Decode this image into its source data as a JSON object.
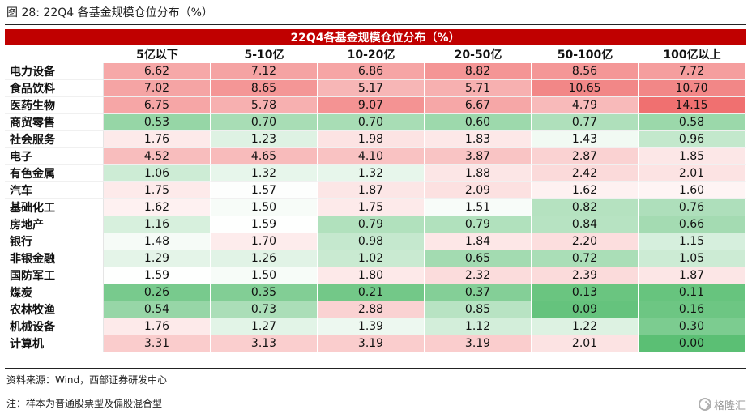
{
  "figure": {
    "title": "图 28:  22Q4 各基金规模仓位分布（%）",
    "source": "资料来源：Wind，西部证券研发中心",
    "note": "注：样本为普通股票型及偏股混合型",
    "watermark": "格隆汇"
  },
  "colors": {
    "banner": "#c00000",
    "high": "#f07070",
    "low": "#5bbf74",
    "neutral": "#ffffff"
  },
  "chart_data": {
    "type": "table",
    "title": "22Q4各基金规模仓位分布（%）",
    "columns": [
      "5亿以下",
      "5-10亿",
      "10-20亿",
      "20-50亿",
      "50-100亿",
      "100亿以上"
    ],
    "rows": [
      {
        "label": "电力设备",
        "values": [
          6.62,
          7.12,
          6.86,
          8.82,
          8.56,
          7.72
        ]
      },
      {
        "label": "食品饮料",
        "values": [
          7.02,
          8.65,
          5.17,
          5.71,
          10.65,
          10.7
        ]
      },
      {
        "label": "医药生物",
        "values": [
          6.75,
          5.78,
          9.07,
          6.67,
          4.79,
          14.15
        ]
      },
      {
        "label": "商贸零售",
        "values": [
          0.53,
          0.7,
          0.7,
          0.6,
          0.77,
          0.58
        ]
      },
      {
        "label": "社会服务",
        "values": [
          1.76,
          1.23,
          1.98,
          1.83,
          1.43,
          0.96
        ]
      },
      {
        "label": "电子",
        "values": [
          4.52,
          4.65,
          4.1,
          3.87,
          2.87,
          1.85
        ]
      },
      {
        "label": "有色金属",
        "values": [
          1.06,
          1.32,
          1.32,
          1.88,
          2.42,
          2.01
        ]
      },
      {
        "label": "汽车",
        "values": [
          1.75,
          1.57,
          1.87,
          2.09,
          1.62,
          1.6
        ]
      },
      {
        "label": "基础化工",
        "values": [
          1.62,
          1.5,
          1.75,
          1.51,
          0.82,
          0.76
        ]
      },
      {
        "label": "房地产",
        "values": [
          1.16,
          1.59,
          0.79,
          0.79,
          0.84,
          0.66
        ]
      },
      {
        "label": "银行",
        "values": [
          1.48,
          1.7,
          0.98,
          1.84,
          2.2,
          1.15
        ]
      },
      {
        "label": "非银金融",
        "values": [
          1.29,
          1.26,
          1.02,
          0.65,
          0.72,
          1.05
        ]
      },
      {
        "label": "国防军工",
        "values": [
          1.59,
          1.5,
          1.8,
          2.32,
          2.39,
          1.87
        ]
      },
      {
        "label": "煤炭",
        "values": [
          0.26,
          0.35,
          0.21,
          0.37,
          0.13,
          0.11
        ]
      },
      {
        "label": "农林牧渔",
        "values": [
          0.54,
          0.73,
          2.88,
          0.85,
          0.09,
          0.16
        ]
      },
      {
        "label": "机械设备",
        "values": [
          1.76,
          1.27,
          1.39,
          1.12,
          1.22,
          0.3
        ]
      },
      {
        "label": "计算机",
        "values": [
          3.31,
          3.13,
          3.19,
          3.19,
          2.01,
          0.0
        ]
      }
    ]
  }
}
